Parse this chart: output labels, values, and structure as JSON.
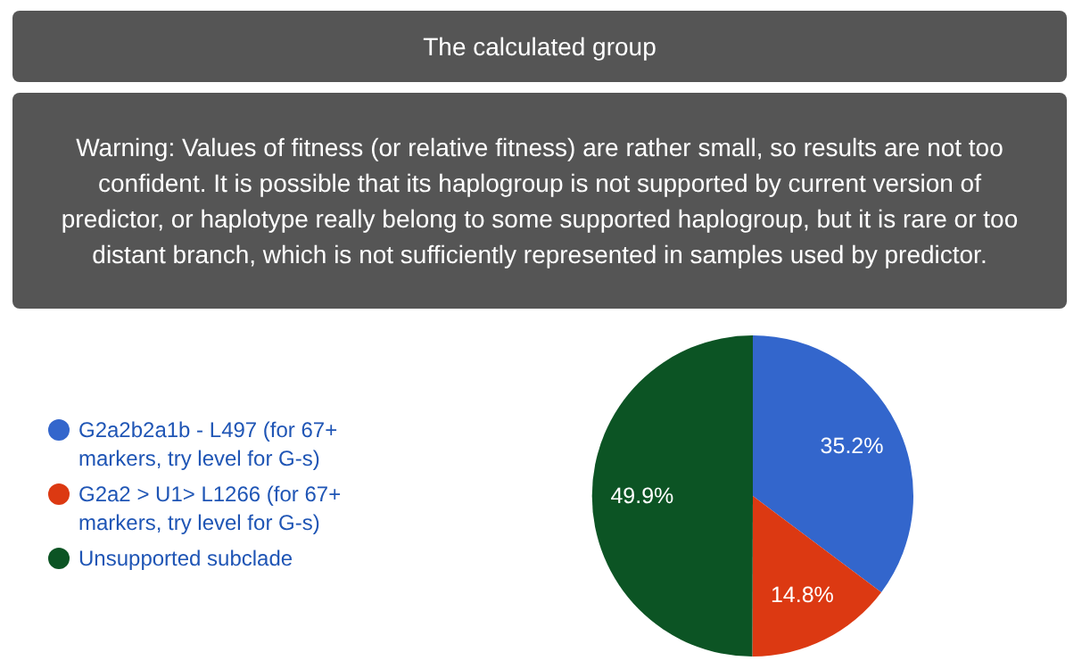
{
  "chart_data": {
    "type": "pie",
    "title": "The calculated group",
    "annotations": [
      "Warning: Values of fitness (or relative fitness) are rather small, so results are not too confident. It is possible that its haplogroup is not supported by current version of predictor, or haplotype really belong to some supported haplogroup, but it is rare or too distant branch, which is not sufficiently represented in samples used by predictor."
    ],
    "categories": [
      "G2a2b2a1b - L497 (for 67+ markers, try level for G-s)",
      "G2a2 > U1> L1266 (for 67+ markers, try level for G-s)",
      "Unsupported subclade"
    ],
    "values": [
      35.2,
      14.8,
      49.9
    ],
    "colors": [
      "#3366cc",
      "#dc3912",
      "#0c5424"
    ],
    "value_labels": [
      "35.2%",
      "14.8%",
      "49.9%"
    ],
    "legend": "left"
  }
}
